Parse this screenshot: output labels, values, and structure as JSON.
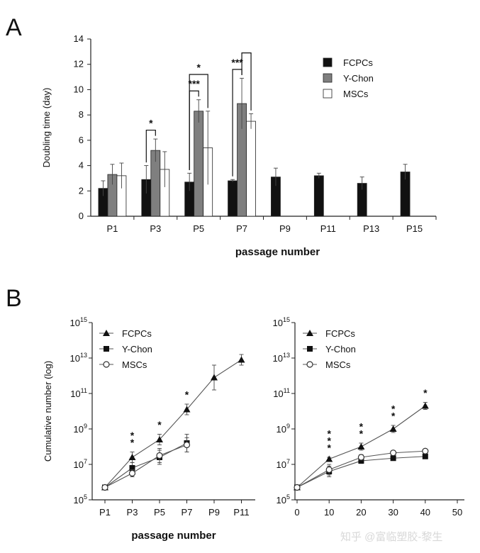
{
  "figure": {
    "panel_a_letter": "A",
    "panel_b_letter": "B",
    "watermark": "知乎 @富临塑胶-黎生",
    "colors": {
      "FCPCs": "#111111",
      "Y-Chon": "#7f7f7f",
      "MSCs": "#ffffff",
      "axis": "#222222"
    }
  },
  "chart_data": [
    {
      "type": "bar",
      "panel": "A",
      "title": "",
      "ylabel": "Doubling time (day)",
      "xlabel": "passage number",
      "ylim": [
        0,
        14
      ],
      "yticks": [
        0,
        2,
        4,
        6,
        8,
        10,
        12,
        14
      ],
      "categories": [
        "P1",
        "P3",
        "P5",
        "P7",
        "P9",
        "P11",
        "P13",
        "P15"
      ],
      "legend_position": "top-right",
      "series": [
        {
          "name": "FCPCs",
          "color": "#111111",
          "values": [
            2.2,
            2.9,
            2.7,
            2.8,
            3.1,
            3.2,
            2.6,
            3.5
          ],
          "errors": [
            0.6,
            1.1,
            0.7,
            0.1,
            0.7,
            0.2,
            0.5,
            0.6
          ]
        },
        {
          "name": "Y-Chon",
          "color": "#7f7f7f",
          "values": [
            3.3,
            5.2,
            8.3,
            8.9,
            null,
            null,
            null,
            null
          ],
          "errors": [
            0.8,
            0.9,
            0.9,
            2.0,
            null,
            null,
            null,
            null
          ]
        },
        {
          "name": "MSCs",
          "color": "#ffffff",
          "values": [
            3.2,
            3.7,
            5.4,
            7.5,
            null,
            null,
            null,
            null
          ],
          "errors": [
            1.0,
            1.4,
            2.9,
            0.6,
            null,
            null,
            null,
            null
          ]
        }
      ],
      "annotations": [
        {
          "category": "P3",
          "from": "FCPCs",
          "to": "Y-Chon",
          "label": "*"
        },
        {
          "category": "P5",
          "from": "FCPCs",
          "to": "Y-Chon",
          "label": "***"
        },
        {
          "category": "P5",
          "from": "FCPCs",
          "to": "MSCs",
          "label": "*"
        },
        {
          "category": "P7",
          "from": "FCPCs",
          "to": "Y-Chon",
          "label": "***"
        },
        {
          "category": "P7",
          "from": "Y-Chon",
          "to": "MSCs",
          "label": ""
        }
      ]
    },
    {
      "type": "line",
      "panel": "B-left",
      "title": "",
      "ylabel": "Cumulative number (log)",
      "xlabel": "passage number",
      "y_scale": "log",
      "ylim_exponent": [
        5,
        15
      ],
      "ytick_exponents": [
        5,
        7,
        9,
        11,
        13,
        15
      ],
      "categories": [
        "P1",
        "P3",
        "P5",
        "P7",
        "P9",
        "P11"
      ],
      "legend_position": "top-left",
      "series": [
        {
          "name": "FCPCs",
          "marker": "triangle",
          "y_exponent": [
            5.7,
            7.4,
            8.4,
            10.1,
            11.9,
            12.9
          ],
          "errors": [
            0,
            0.3,
            0.3,
            0.3,
            0.7,
            0.3
          ]
        },
        {
          "name": "Y-Chon",
          "marker": "square",
          "y_exponent": [
            5.7,
            6.8,
            7.4,
            8.2,
            null,
            null
          ],
          "errors": [
            0,
            0.3,
            0.4,
            0.5,
            null,
            null
          ]
        },
        {
          "name": "MSCs",
          "marker": "circle",
          "y_exponent": [
            5.7,
            6.5,
            7.5,
            8.1,
            null,
            null
          ],
          "errors": [
            0,
            0.2,
            0.4,
            0.4,
            null,
            null
          ]
        }
      ],
      "annotations": [
        {
          "category": "P3",
          "label": "**"
        },
        {
          "category": "P5",
          "label": "*"
        },
        {
          "category": "P7",
          "label": "*"
        }
      ]
    },
    {
      "type": "line",
      "panel": "B-right",
      "title": "",
      "ylabel": "",
      "xlabel": "",
      "y_scale": "log",
      "ylim_exponent": [
        5,
        15
      ],
      "ytick_exponents": [
        5,
        7,
        9,
        11,
        13,
        15
      ],
      "xlim": [
        0,
        50
      ],
      "xticks": [
        0,
        10,
        20,
        30,
        40,
        50
      ],
      "legend_position": "top-left",
      "series": [
        {
          "name": "FCPCs",
          "marker": "triangle",
          "x": [
            0,
            10,
            20,
            30,
            40
          ],
          "y_exponent": [
            5.7,
            7.3,
            8.0,
            9.0,
            10.3
          ],
          "errors": [
            0,
            0.1,
            0.2,
            0.2,
            0.2
          ]
        },
        {
          "name": "Y-Chon",
          "marker": "square",
          "x": [
            0,
            10,
            20,
            30,
            40
          ],
          "y_exponent": [
            5.7,
            6.6,
            7.2,
            7.35,
            7.45
          ],
          "errors": [
            0,
            0.3,
            0.15,
            0.1,
            0.1
          ]
        },
        {
          "name": "MSCs",
          "marker": "circle",
          "x": [
            0,
            10,
            20,
            30,
            40
          ],
          "y_exponent": [
            5.7,
            6.7,
            7.4,
            7.65,
            7.75
          ],
          "errors": [
            0,
            0.3,
            0.15,
            0.1,
            0.1
          ]
        }
      ],
      "annotations": [
        {
          "x": 10,
          "label": "***"
        },
        {
          "x": 20,
          "label": "**"
        },
        {
          "x": 30,
          "label": "**"
        },
        {
          "x": 40,
          "label": "*"
        }
      ]
    }
  ]
}
